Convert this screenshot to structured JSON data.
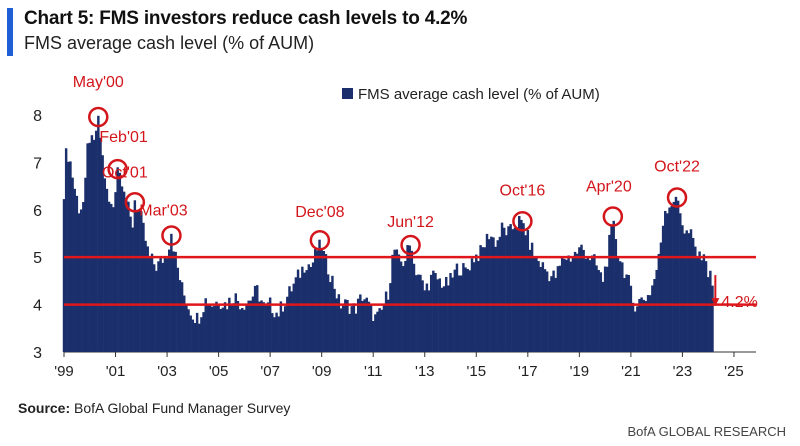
{
  "header": {
    "title": "Chart 5: FMS investors reduce cash levels to 4.2%",
    "subtitle": "FMS average cash level (% of AUM)"
  },
  "footer": {
    "source_label": "Source:",
    "source_text": " BofA Global Fund Manager Survey",
    "brand": "BofA GLOBAL RESEARCH"
  },
  "colors": {
    "bars": "#1a2f6b",
    "lines": "#e0161b",
    "annotation": "#d3161b"
  },
  "chart_data": {
    "type": "bar",
    "title": "Chart 5: FMS investors reduce cash levels to 4.2%",
    "subtitle": "FMS average cash level (% of AUM)",
    "legend": {
      "label": "FMS average cash level (% of AUM)",
      "position": "top-center"
    },
    "ylim": [
      3,
      8.4
    ],
    "yticks": [
      3,
      4,
      5,
      6,
      7,
      8
    ],
    "xlim": [
      1999,
      2025.7
    ],
    "xticks": [
      {
        "label": "'99",
        "value": 1999
      },
      {
        "label": "'01",
        "value": 2001
      },
      {
        "label": "'03",
        "value": 2003
      },
      {
        "label": "'05",
        "value": 2005
      },
      {
        "label": "'07",
        "value": 2007
      },
      {
        "label": "'09",
        "value": 2009
      },
      {
        "label": "'11",
        "value": 2011
      },
      {
        "label": "'13",
        "value": 2013
      },
      {
        "label": "'15",
        "value": 2015
      },
      {
        "label": "'17",
        "value": 2017
      },
      {
        "label": "'19",
        "value": 2019
      },
      {
        "label": "'21",
        "value": 2021
      },
      {
        "label": "'23",
        "value": 2023
      },
      {
        "label": "'25",
        "value": 2025
      }
    ],
    "reference_lines": [
      5.0,
      4.0
    ],
    "anchor_points": [
      [
        1999.0,
        6.4
      ],
      [
        1999.1,
        7.3
      ],
      [
        1999.25,
        7.0
      ],
      [
        1999.4,
        6.5
      ],
      [
        1999.6,
        6.0
      ],
      [
        1999.8,
        6.2
      ],
      [
        1999.95,
        7.6
      ],
      [
        2000.15,
        7.3
      ],
      [
        2000.33,
        8.0
      ],
      [
        2000.5,
        7.1
      ],
      [
        2000.7,
        6.2
      ],
      [
        2000.9,
        6.0
      ],
      [
        2001.08,
        6.9
      ],
      [
        2001.3,
        6.6
      ],
      [
        2001.5,
        6.0
      ],
      [
        2001.65,
        5.6
      ],
      [
        2001.75,
        6.2
      ],
      [
        2001.9,
        6.0
      ],
      [
        2002.0,
        5.8
      ],
      [
        2002.3,
        5.0
      ],
      [
        2002.6,
        4.8
      ],
      [
        2002.9,
        5.0
      ],
      [
        2003.0,
        5.1
      ],
      [
        2003.17,
        5.5
      ],
      [
        2003.4,
        4.8
      ],
      [
        2003.6,
        4.3
      ],
      [
        2003.8,
        4.0
      ],
      [
        2004.0,
        3.8
      ],
      [
        2004.2,
        3.7
      ],
      [
        2004.5,
        4.1
      ],
      [
        2004.8,
        4.0
      ],
      [
        2005.0,
        4.1
      ],
      [
        2005.3,
        4.0
      ],
      [
        2005.6,
        4.2
      ],
      [
        2005.9,
        4.0
      ],
      [
        2006.2,
        4.1
      ],
      [
        2006.5,
        4.3
      ],
      [
        2006.8,
        3.9
      ],
      [
        2007.0,
        4.0
      ],
      [
        2007.3,
        3.8
      ],
      [
        2007.5,
        4.0
      ],
      [
        2007.8,
        4.3
      ],
      [
        2008.0,
        4.5
      ],
      [
        2008.2,
        4.7
      ],
      [
        2008.4,
        4.9
      ],
      [
        2008.6,
        4.8
      ],
      [
        2008.8,
        5.1
      ],
      [
        2008.93,
        5.4
      ],
      [
        2009.1,
        5.0
      ],
      [
        2009.3,
        4.7
      ],
      [
        2009.5,
        4.4
      ],
      [
        2009.7,
        4.0
      ],
      [
        2010.0,
        4.0
      ],
      [
        2010.3,
        3.9
      ],
      [
        2010.6,
        4.2
      ],
      [
        2010.9,
        3.9
      ],
      [
        2011.1,
        3.7
      ],
      [
        2011.3,
        3.8
      ],
      [
        2011.6,
        4.3
      ],
      [
        2011.8,
        5.2
      ],
      [
        2012.0,
        4.9
      ],
      [
        2012.2,
        4.9
      ],
      [
        2012.45,
        5.3
      ],
      [
        2012.6,
        4.8
      ],
      [
        2012.8,
        4.6
      ],
      [
        2013.0,
        4.3
      ],
      [
        2013.3,
        4.6
      ],
      [
        2013.6,
        4.5
      ],
      [
        2013.8,
        4.4
      ],
      [
        2014.0,
        4.5
      ],
      [
        2014.3,
        4.8
      ],
      [
        2014.6,
        4.7
      ],
      [
        2014.9,
        5.0
      ],
      [
        2015.2,
        5.1
      ],
      [
        2015.5,
        5.5
      ],
      [
        2015.8,
        5.3
      ],
      [
        2016.0,
        5.6
      ],
      [
        2016.3,
        5.5
      ],
      [
        2016.5,
        5.7
      ],
      [
        2016.79,
        5.8
      ],
      [
        2017.0,
        5.4
      ],
      [
        2017.3,
        5.0
      ],
      [
        2017.6,
        4.8
      ],
      [
        2017.9,
        4.6
      ],
      [
        2018.1,
        4.6
      ],
      [
        2018.4,
        5.0
      ],
      [
        2018.7,
        5.0
      ],
      [
        2018.9,
        5.1
      ],
      [
        2019.1,
        5.2
      ],
      [
        2019.4,
        5.0
      ],
      [
        2019.6,
        4.9
      ],
      [
        2019.9,
        4.5
      ],
      [
        2020.1,
        5.0
      ],
      [
        2020.3,
        5.9
      ],
      [
        2020.5,
        5.1
      ],
      [
        2020.7,
        4.8
      ],
      [
        2020.9,
        4.5
      ],
      [
        2021.1,
        4.0
      ],
      [
        2021.4,
        4.1
      ],
      [
        2021.7,
        4.2
      ],
      [
        2021.9,
        4.5
      ],
      [
        2022.1,
        5.0
      ],
      [
        2022.3,
        6.0
      ],
      [
        2022.5,
        6.1
      ],
      [
        2022.79,
        6.3
      ],
      [
        2022.95,
        5.9
      ],
      [
        2023.1,
        5.5
      ],
      [
        2023.3,
        5.5
      ],
      [
        2023.5,
        5.2
      ],
      [
        2023.7,
        4.9
      ],
      [
        2023.8,
        5.3
      ],
      [
        2023.9,
        4.8
      ],
      [
        2024.0,
        4.7
      ],
      [
        2024.1,
        4.8
      ],
      [
        2024.2,
        4.2
      ]
    ],
    "annotations": [
      {
        "label": "May'00",
        "x": 2000.33,
        "y": 8.0
      },
      {
        "label": "Feb'01",
        "x": 2001.08,
        "y": 6.9
      },
      {
        "label": "Oct'01",
        "x": 2001.75,
        "y": 6.2
      },
      {
        "label": "Mar'03",
        "x": 2003.17,
        "y": 5.5
      },
      {
        "label": "Dec'08",
        "x": 2008.93,
        "y": 5.4
      },
      {
        "label": "Jun'12",
        "x": 2012.45,
        "y": 5.3
      },
      {
        "label": "Oct'16",
        "x": 2016.79,
        "y": 5.8
      },
      {
        "label": "Apr'20",
        "x": 2020.3,
        "y": 5.9
      },
      {
        "label": "Oct'22",
        "x": 2022.79,
        "y": 6.3
      }
    ],
    "latest": {
      "label": "4.2%",
      "x": 2024.2,
      "y": 4.2
    }
  }
}
